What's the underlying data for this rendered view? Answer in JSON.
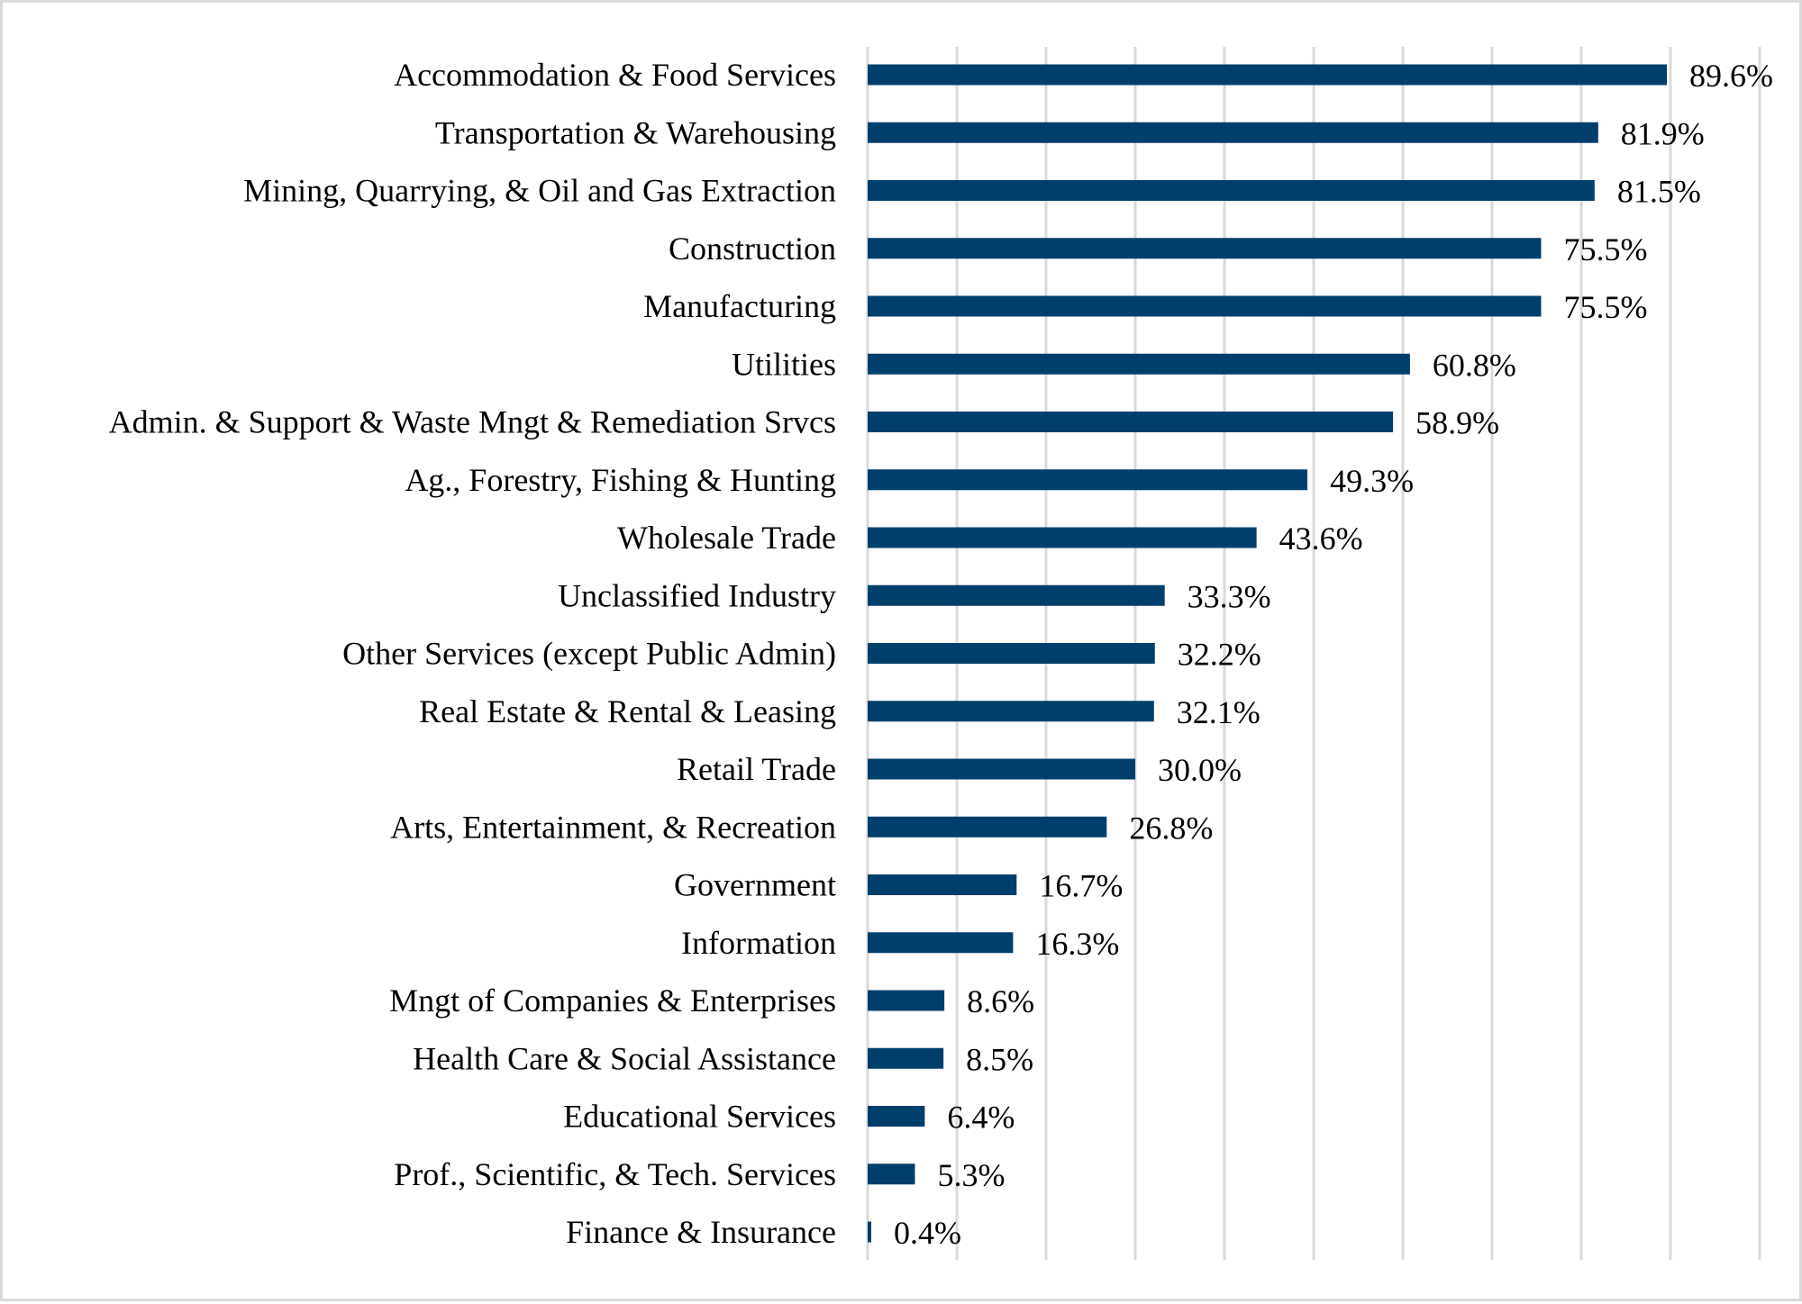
{
  "chart_data": {
    "type": "bar",
    "orientation": "horizontal",
    "title": "",
    "xlabel": "",
    "ylabel": "",
    "xlim": [
      0,
      100
    ],
    "grid": true,
    "grid_step": 10,
    "bar_color": "#003f6b",
    "grid_color": "#d9d9d9",
    "categories": [
      "Accommodation & Food Services",
      "Transportation & Warehousing",
      "Mining, Quarrying, & Oil and Gas Extraction",
      "Construction",
      "Manufacturing",
      "Utilities",
      "Admin. & Support & Waste Mngt & Remediation Srvcs",
      "Ag., Forestry, Fishing & Hunting",
      "Wholesale Trade",
      "Unclassified Industry",
      "Other Services (except Public Admin)",
      "Real Estate & Rental & Leasing",
      "Retail Trade",
      "Arts, Entertainment, & Recreation",
      "Government",
      "Information",
      "Mngt of Companies & Enterprises",
      "Health Care & Social Assistance",
      "Educational Services",
      "Prof., Scientific, & Tech. Services",
      "Finance & Insurance"
    ],
    "values": [
      89.6,
      81.9,
      81.5,
      75.5,
      75.5,
      60.8,
      58.9,
      49.3,
      43.6,
      33.3,
      32.2,
      32.1,
      30.0,
      26.8,
      16.7,
      16.3,
      8.6,
      8.5,
      6.4,
      5.3,
      0.4
    ],
    "data_labels": [
      "89.6%",
      "81.9%",
      "81.5%",
      "75.5%",
      "75.5%",
      "60.8%",
      "58.9%",
      "49.3%",
      "43.6%",
      "33.3%",
      "32.2%",
      "32.1%",
      "30.0%",
      "26.8%",
      "16.7%",
      "16.3%",
      "8.6%",
      "8.5%",
      "6.4%",
      "5.3%",
      "0.4%"
    ]
  }
}
